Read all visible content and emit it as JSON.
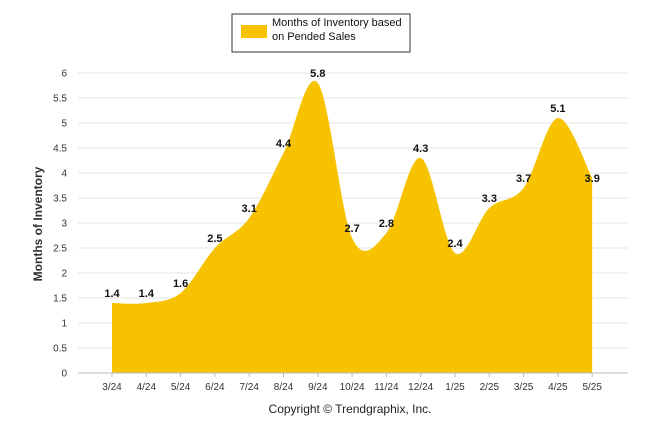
{
  "chart_data": {
    "type": "area",
    "categories": [
      "3/24",
      "4/24",
      "5/24",
      "6/24",
      "7/24",
      "8/24",
      "9/24",
      "10/24",
      "11/24",
      "12/24",
      "1/25",
      "2/25",
      "3/25",
      "4/25",
      "5/25"
    ],
    "series": [
      {
        "name": "Months of Inventory based on Pended Sales",
        "values": [
          1.4,
          1.4,
          1.6,
          2.5,
          3.1,
          4.4,
          5.8,
          2.7,
          2.8,
          4.3,
          2.4,
          3.3,
          3.7,
          5.1,
          3.9
        ],
        "data_labels": [
          "1.4",
          "1.4",
          "1.6",
          "2.5",
          "3.1",
          "4.4",
          "5.8",
          "2.7",
          "2.8",
          "4.3",
          "2.4",
          "3.3",
          "3.7",
          "5.1",
          "3.9"
        ]
      }
    ],
    "legend_lines": [
      "Months of Inventory based",
      "on Pended Sales"
    ],
    "ylabel": "Months of Inventory",
    "ylim": [
      0,
      6
    ],
    "yticks": [
      "0",
      "0.5",
      "1",
      "1.5",
      "2",
      "2.5",
      "3",
      "3.5",
      "4",
      "4.5",
      "5",
      "5.5",
      "6"
    ],
    "grid": true,
    "legend_position": "top-center",
    "footer": "Copyright © Trendgraphix, Inc.",
    "colors": {
      "fill": "#F7C300",
      "grid": "#E6E6E6",
      "axis": "#BBBBBB"
    }
  }
}
